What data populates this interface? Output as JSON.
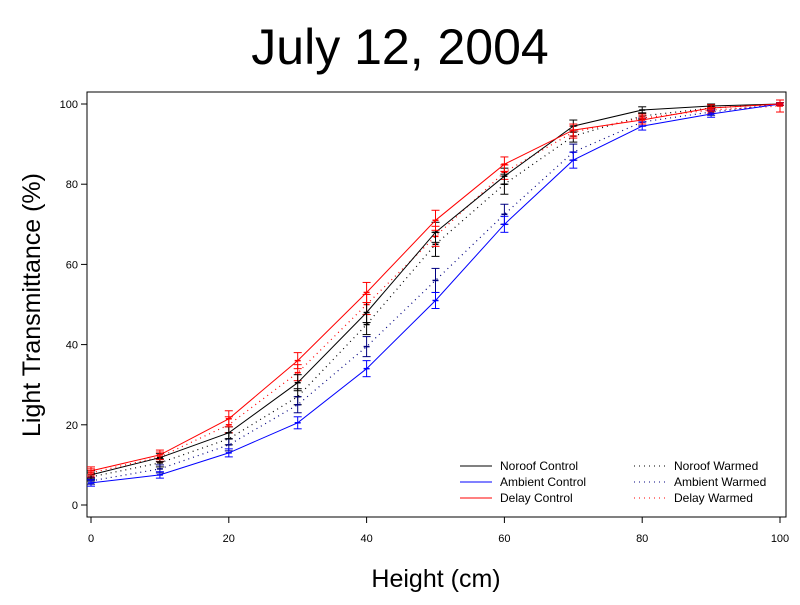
{
  "chart_data": {
    "type": "line",
    "title": "July 12, 2004",
    "xlabel": "Height (cm)",
    "ylabel": "Light Transmittance (%)",
    "x": [
      0,
      10,
      20,
      30,
      40,
      50,
      60,
      70,
      80,
      90,
      100
    ],
    "xlim": [
      0,
      100
    ],
    "ylim": [
      0,
      100
    ],
    "xticks": [
      "0",
      "20",
      "40",
      "60",
      "80",
      "100"
    ],
    "yticks": [
      "0",
      "20",
      "40",
      "60",
      "80",
      "100"
    ],
    "grid": false,
    "legend_position": "bottom-right",
    "series": [
      {
        "name": "Noroof Control",
        "color": "#000000",
        "style": "solid",
        "values": [
          7.5,
          11.8,
          18,
          30.5,
          48,
          68,
          82,
          94.5,
          98.5,
          99.5,
          100
        ],
        "errors": [
          1,
          1,
          1.5,
          2,
          2.5,
          2.5,
          2,
          1.5,
          0.8,
          0.5,
          0.3
        ]
      },
      {
        "name": "Ambient Control",
        "color": "#0000ff",
        "style": "solid",
        "values": [
          5.5,
          7.5,
          13,
          20.5,
          34,
          51,
          70,
          86,
          94.5,
          97.5,
          100
        ],
        "errors": [
          0.8,
          0.8,
          1,
          1.5,
          2,
          2,
          2,
          2,
          1,
          0.8,
          0.3
        ]
      },
      {
        "name": "Delay Control",
        "color": "#ff0000",
        "style": "solid",
        "values": [
          8.5,
          12.5,
          21.5,
          36,
          53,
          71,
          85,
          93.5,
          96,
          99,
          100
        ],
        "errors": [
          1,
          1.2,
          2,
          2,
          2.5,
          2.5,
          1.8,
          1.5,
          1,
          0.8,
          0.3
        ]
      },
      {
        "name": "Noroof Warmed",
        "color": "#000000",
        "style": "dotted",
        "values": [
          7,
          10.5,
          16.5,
          27,
          45,
          65,
          80,
          92,
          97,
          99,
          100
        ],
        "errors": [
          1,
          1,
          1.5,
          2,
          2.5,
          3,
          2.5,
          1.5,
          0.8,
          0.5,
          0.3
        ]
      },
      {
        "name": "Ambient Warmed",
        "color": "#000080",
        "style": "dotted",
        "values": [
          6,
          9,
          15,
          25,
          39.5,
          56,
          72.5,
          88,
          95.5,
          98,
          100
        ],
        "errors": [
          0.8,
          1,
          1.5,
          2,
          2.5,
          3,
          2.5,
          2,
          1,
          0.8,
          0.3
        ]
      },
      {
        "name": "Delay Warmed",
        "color": "#ff0000",
        "style": "dotted",
        "values": [
          8,
          12,
          20,
          33,
          50,
          67,
          83,
          93,
          96.5,
          98.5,
          99.5
        ],
        "errors": [
          1,
          1.2,
          2,
          2,
          2.5,
          2.5,
          1.8,
          1.5,
          1,
          0.8,
          1.5
        ]
      }
    ]
  }
}
